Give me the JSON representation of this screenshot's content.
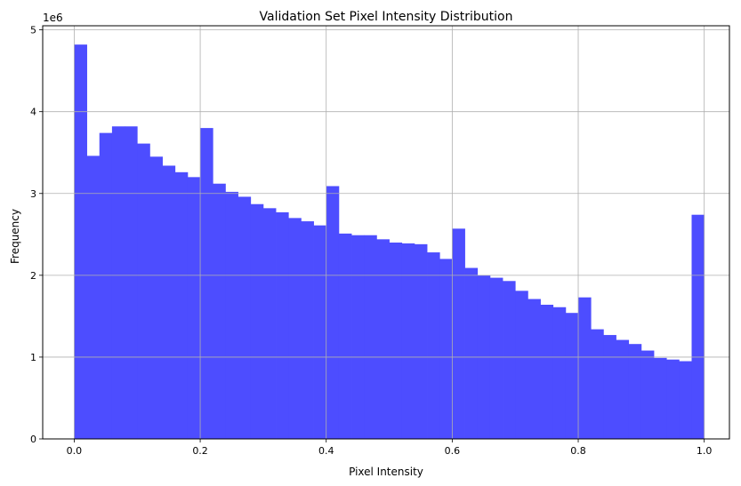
{
  "chart_data": {
    "type": "bar",
    "title": "Validation Set Pixel Intensity Distribution",
    "xlabel": "Pixel Intensity",
    "ylabel": "Frequency",
    "y_offset_label": "1e6",
    "xlim": [
      -0.05,
      1.04
    ],
    "ylim": [
      0,
      5.05
    ],
    "xticks": [
      0.0,
      0.2,
      0.4,
      0.6,
      0.8,
      1.0
    ],
    "xtick_labels": [
      "0.0",
      "0.2",
      "0.4",
      "0.6",
      "0.8",
      "1.0"
    ],
    "yticks": [
      0,
      1,
      2,
      3,
      4,
      5
    ],
    "ytick_labels": [
      "0",
      "1",
      "2",
      "3",
      "4",
      "5"
    ],
    "grid": true,
    "bin_edges_range": [
      0.0,
      1.0
    ],
    "bins": 50,
    "bar_color": "#4d4dff",
    "values": [
      4.82,
      3.46,
      3.74,
      3.82,
      3.82,
      3.61,
      3.45,
      3.34,
      3.26,
      3.2,
      3.8,
      3.12,
      3.02,
      2.96,
      2.87,
      2.82,
      2.77,
      2.7,
      2.66,
      2.61,
      3.09,
      2.51,
      2.49,
      2.49,
      2.44,
      2.4,
      2.39,
      2.38,
      2.28,
      2.2,
      2.57,
      2.09,
      2.0,
      1.97,
      1.93,
      1.81,
      1.71,
      1.64,
      1.61,
      1.54,
      1.73,
      1.34,
      1.27,
      1.21,
      1.16,
      1.08,
      0.99,
      0.97,
      0.95,
      2.74
    ]
  }
}
